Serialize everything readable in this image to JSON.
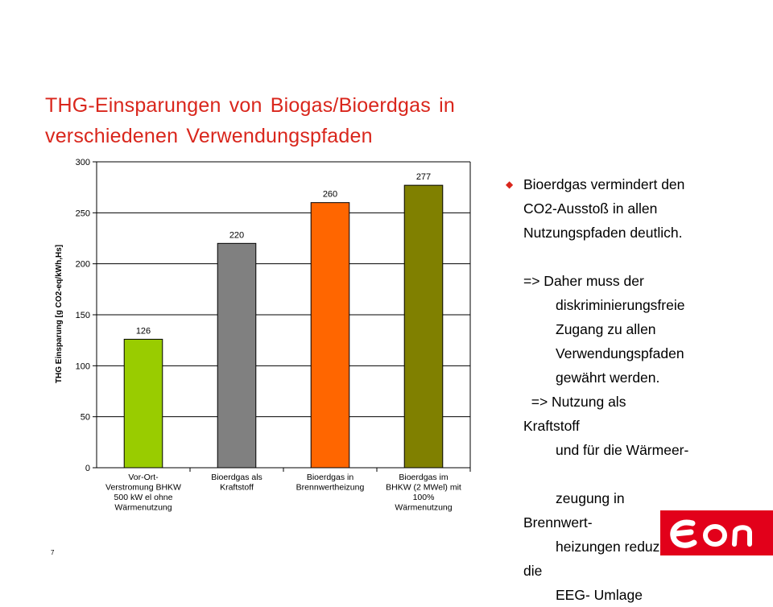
{
  "slide": {
    "title_line1": "THG-Einsparungen von Biogas/Bioerdgas in",
    "title_line2": "verschiedenen Verwendungspfaden",
    "page_number": "7",
    "accent_color": "#d9261c",
    "logo": {
      "icon": "eon-logo-icon",
      "color": "#e2001a"
    }
  },
  "chart_data": {
    "type": "bar",
    "categories": [
      [
        "Vor-Ort-",
        "Verstromung BHKW",
        "500 kW el ohne",
        "Wärmenutzung"
      ],
      [
        "Bioerdgas als",
        "Kraftstoff"
      ],
      [
        "Bioerdgas in",
        "Brennwertheizung"
      ],
      [
        "Bioerdgas im",
        "BHKW (2 MWel) mit",
        "100%",
        "Wärmenutzung"
      ]
    ],
    "values": [
      126,
      220,
      260,
      277
    ],
    "bar_colors": [
      "#99cc00",
      "#808080",
      "#ff6600",
      "#808000"
    ],
    "ylabel": "THG Einsparung [g CO2-eq/kWh,Hs]",
    "xlabel": "",
    "ylim": [
      0,
      300
    ],
    "yticks": [
      0,
      50,
      100,
      150,
      200,
      250,
      300
    ],
    "grid": true,
    "legend": "none"
  },
  "bullets": {
    "line1": "Bioerdgas vermindert den",
    "line2": "CO2-Ausstoß in allen",
    "line3": "Nutzungspfaden deutlich.",
    "line4": "=> Daher muss der",
    "line5": "diskriminierungsfreie",
    "line6": "Zugang zu allen",
    "line7": "Verwendungspfaden",
    "line8": "gewährt werden.",
    "line9": "  => Nutzung als",
    "line10": "Kraftstoff",
    "line11": "und für die Wärmeer-",
    "line12": "zeugung in",
    "line13": "Brennwert-",
    "line14": "heizungen reduziert",
    "line15": "die",
    "line16": "EEG- Umlage",
    "bullet_icon": "bullet-dot-icon"
  }
}
